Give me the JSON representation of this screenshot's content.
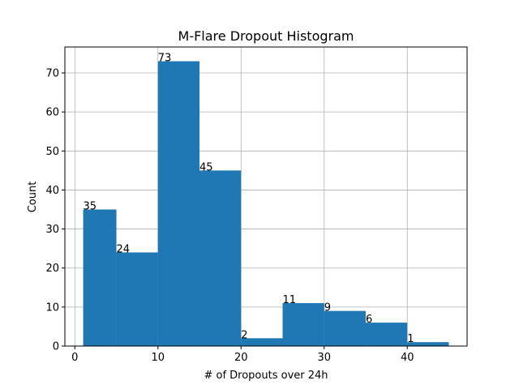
{
  "chart_data": {
    "type": "bar",
    "title": "M-Flare Dropout Histogram",
    "xlabel": "# of Dropouts over 24h",
    "ylabel": "Count",
    "bins": [
      {
        "x0": 1,
        "x1": 5,
        "count": 35
      },
      {
        "x0": 5,
        "x1": 10,
        "count": 24
      },
      {
        "x0": 10,
        "x1": 15,
        "count": 73
      },
      {
        "x0": 15,
        "x1": 20,
        "count": 45
      },
      {
        "x0": 20,
        "x1": 25,
        "count": 2
      },
      {
        "x0": 25,
        "x1": 30,
        "count": 11
      },
      {
        "x0": 30,
        "x1": 35,
        "count": 9
      },
      {
        "x0": 35,
        "x1": 40,
        "count": 6
      },
      {
        "x0": 40,
        "x1": 45,
        "count": 1
      }
    ],
    "xlim": [
      -1.2,
      47.2
    ],
    "ylim": [
      0,
      76.65
    ],
    "xticks": [
      0,
      10,
      20,
      30,
      40
    ],
    "yticks": [
      0,
      10,
      20,
      30,
      40,
      50,
      60,
      70
    ],
    "grid": true,
    "bar_color": "#1f77b4"
  }
}
